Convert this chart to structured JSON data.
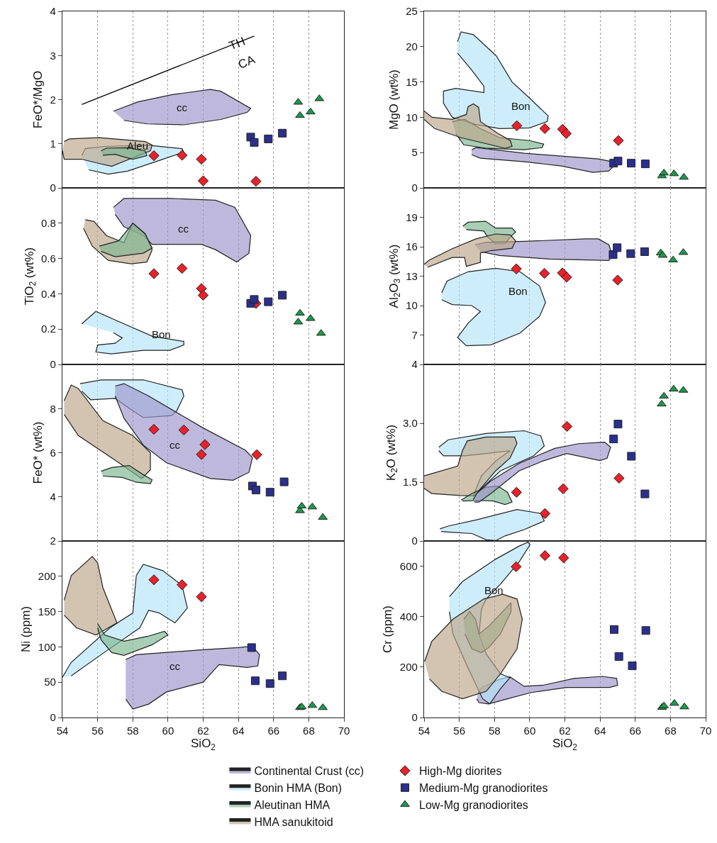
{
  "chart_data": [
    {
      "type": "scatter",
      "ylabel": "FeO*/MgO",
      "xlim": [
        54,
        70
      ],
      "xticks": [
        54,
        56,
        58,
        60,
        62,
        64,
        66,
        68,
        70
      ],
      "ylim": [
        0,
        4
      ],
      "yticks": [
        0,
        1,
        2,
        3,
        4
      ],
      "grid": "x",
      "tick_labels": "y",
      "annotations": [
        "cc",
        "Aleu",
        "TH",
        "CA"
      ],
      "series": [
        {
          "type": "area",
          "color": "#9b93c9",
          "x": [
            56.9,
            58.3,
            60.2,
            62.4,
            63.0,
            64.7,
            64.5,
            63.0,
            60.9,
            58.8,
            57.5
          ],
          "values": [
            1.74,
            1.95,
            2.11,
            2.23,
            2.19,
            1.8,
            1.71,
            1.55,
            1.43,
            1.45,
            1.53
          ]
        },
        {
          "type": "area",
          "color": "#b3e3f7",
          "x": [
            55.1,
            55.3,
            56.4,
            58.8,
            60.8,
            60.9,
            59.5,
            57.7,
            56.6,
            55.5
          ],
          "values": [
            0.73,
            0.89,
            0.94,
            0.97,
            0.89,
            0.81,
            0.62,
            0.38,
            0.31,
            0.41
          ]
        },
        {
          "type": "area",
          "color": "#bca589",
          "x": [
            54.1,
            54.4,
            56.1,
            58.7,
            59.1,
            59.0,
            58.3,
            56.8,
            55.9,
            55.1,
            54.1,
            54.0
          ],
          "values": [
            1.05,
            1.11,
            1.14,
            1.05,
            0.97,
            0.84,
            0.73,
            0.49,
            0.57,
            0.65,
            0.65,
            0.84
          ]
        },
        {
          "type": "area",
          "color": "#79b58f",
          "x": [
            56.2,
            56.5,
            57.7,
            58.7,
            58.8,
            58.0,
            57.5,
            57.0,
            56.3
          ],
          "values": [
            0.84,
            0.9,
            0.91,
            0.84,
            0.73,
            0.65,
            0.7,
            0.76,
            0.74
          ]
        },
        {
          "type": "line",
          "color": "#000000",
          "x": [
            55.1,
            64.9
          ],
          "values": [
            1.89,
            3.44
          ]
        },
        {
          "type": "scatter",
          "marker": "diamond",
          "color": "#e8212a",
          "x": [
            59.2,
            60.8,
            61.9,
            62.0,
            65.0
          ],
          "values": [
            0.73,
            0.74,
            0.65,
            0.16,
            0.15
          ]
        },
        {
          "type": "scatter",
          "marker": "square",
          "color": "#2b2f8f",
          "x": [
            64.7,
            64.9,
            65.7,
            66.5
          ],
          "values": [
            1.15,
            1.03,
            1.11,
            1.24
          ]
        },
        {
          "type": "scatter",
          "marker": "triangle",
          "color": "#1a9a4a",
          "x": [
            67.4,
            67.5,
            68.1,
            68.6
          ],
          "values": [
            1.94,
            1.64,
            1.72,
            2.02
          ]
        }
      ]
    },
    {
      "type": "scatter",
      "ylabel": "MgO (wt%)",
      "xlim": [
        54,
        70
      ],
      "xticks": [
        54,
        56,
        58,
        60,
        62,
        64,
        66,
        68,
        70
      ],
      "ylim": [
        0,
        25
      ],
      "yticks": [
        0,
        5,
        10,
        15,
        20,
        25
      ],
      "grid": "x",
      "tick_labels": "y",
      "annotations": [
        "Bon"
      ],
      "series": [
        {
          "type": "area",
          "color": "#b3e3f7",
          "x": [
            55.9,
            56.1,
            56.8,
            58.1,
            59.0,
            60.0,
            61.05,
            61.0,
            60.0,
            58.3,
            56.9,
            55.6,
            55.1,
            55.1,
            55.8,
            57.4,
            57.4,
            56.7,
            55.9
          ],
          "values": [
            20.7,
            22.1,
            21.7,
            18.7,
            15.0,
            12.7,
            10.2,
            9.4,
            8.5,
            8.4,
            9.0,
            10.0,
            12.0,
            13.7,
            14.1,
            13.5,
            14.4,
            16.7,
            19.1
          ]
        },
        {
          "type": "area",
          "color": "#79b58f",
          "x": [
            55.6,
            56.3,
            57.2,
            58.3,
            60.0,
            60.8,
            60.7,
            59.7,
            57.6,
            56.25,
            55.8
          ],
          "values": [
            9.4,
            9.7,
            8.4,
            7.1,
            6.7,
            6.2,
            5.7,
            5.4,
            5.6,
            6.1,
            7.7
          ]
        },
        {
          "type": "area",
          "color": "#bca589",
          "x": [
            54.0,
            54.45,
            55.6,
            56.4,
            56.5,
            56.8,
            57.1,
            57.2,
            58.2,
            58.9,
            59.0,
            58.6,
            57.8,
            56.1,
            54.6,
            54.0
          ],
          "values": [
            10.9,
            10.0,
            9.7,
            10.4,
            11.5,
            11.9,
            11.4,
            9.4,
            7.7,
            6.7,
            5.9,
            5.6,
            6.1,
            7.1,
            8.4,
            9.7
          ]
        },
        {
          "type": "area",
          "color": "#9b93c9",
          "x": [
            56.7,
            56.95,
            59.7,
            63.9,
            64.7,
            64.9,
            64.5,
            63.6,
            61.8,
            59.7,
            57.2,
            56.7
          ],
          "values": [
            5.4,
            5.7,
            4.9,
            4.1,
            3.7,
            3.4,
            2.4,
            2.2,
            3.1,
            3.7,
            4.2,
            4.7
          ]
        },
        {
          "type": "scatter",
          "marker": "diamond",
          "color": "#e8212a",
          "x": [
            59.27,
            60.86,
            61.87,
            62.08,
            65.04
          ],
          "values": [
            8.8,
            8.4,
            8.3,
            7.7,
            6.7
          ]
        },
        {
          "type": "scatter",
          "marker": "square",
          "color": "#2b2f8f",
          "x": [
            64.77,
            65.02,
            65.77,
            66.57
          ],
          "values": [
            3.5,
            3.8,
            3.5,
            3.4
          ]
        },
        {
          "type": "scatter",
          "marker": "triangle",
          "color": "#1a9a4a",
          "x": [
            67.52,
            67.63,
            68.2,
            68.76
          ],
          "values": [
            1.7,
            2.1,
            2.0,
            1.5
          ]
        }
      ]
    },
    {
      "type": "scatter",
      "ylabel": "TiO$_{2}$ (wt%)",
      "xlim": [
        54,
        70
      ],
      "xticks": [
        54,
        56,
        58,
        60,
        62,
        64,
        66,
        68,
        70
      ],
      "ylim": [
        0,
        1
      ],
      "yticks": [
        0,
        0.2,
        0.4,
        0.6,
        0.8
      ],
      "grid": "x",
      "tick_labels": "y",
      "annotations": [
        "cc",
        "Bon"
      ],
      "series": [
        {
          "type": "area",
          "color": "#9b93c9",
          "x": [
            56.9,
            57.5,
            60.2,
            62.7,
            63.8,
            64.7,
            64.6,
            63.9,
            62.7,
            61.9,
            59.1,
            58.6,
            57.5,
            57.0
          ],
          "values": [
            0.89,
            0.94,
            0.94,
            0.93,
            0.89,
            0.73,
            0.63,
            0.58,
            0.65,
            0.68,
            0.68,
            0.73,
            0.78,
            0.85
          ]
        },
        {
          "type": "area",
          "color": "#bca589",
          "x": [
            55.3,
            55.8,
            56.5,
            57.5,
            58.0,
            58.7,
            59.1,
            58.8,
            57.9,
            56.6,
            55.7,
            55.2
          ],
          "values": [
            0.82,
            0.81,
            0.73,
            0.69,
            0.8,
            0.74,
            0.65,
            0.58,
            0.57,
            0.59,
            0.67,
            0.77
          ]
        },
        {
          "type": "area",
          "color": "#79b58f",
          "x": [
            56.1,
            57.2,
            58.0,
            58.7,
            59.1,
            58.6,
            57.0,
            56.2
          ],
          "values": [
            0.67,
            0.7,
            0.8,
            0.74,
            0.66,
            0.63,
            0.61,
            0.64
          ]
        },
        {
          "type": "area",
          "color": "#b3e3f7",
          "x": [
            55.1,
            55.9,
            57.5,
            59.1,
            60.9,
            60.9,
            60.1,
            58.6,
            56.8,
            55.9,
            56.0,
            57.0,
            57.4,
            56.9
          ],
          "values": [
            0.23,
            0.3,
            0.23,
            0.16,
            0.13,
            0.11,
            0.08,
            0.08,
            0.06,
            0.07,
            0.11,
            0.12,
            0.15,
            0.18
          ]
        },
        {
          "type": "scatter",
          "marker": "diamond",
          "color": "#e8212a",
          "x": [
            59.2,
            60.8,
            61.9,
            62.0,
            65.0
          ],
          "values": [
            0.514,
            0.544,
            0.43,
            0.392,
            0.346
          ]
        },
        {
          "type": "scatter",
          "marker": "square",
          "color": "#2b2f8f",
          "x": [
            64.7,
            64.9,
            65.7,
            66.5
          ],
          "values": [
            0.346,
            0.368,
            0.355,
            0.392
          ]
        },
        {
          "type": "scatter",
          "marker": "triangle",
          "color": "#1a9a4a",
          "x": [
            67.5,
            67.4,
            68.1,
            68.7
          ],
          "values": [
            0.29,
            0.24,
            0.26,
            0.176
          ]
        }
      ]
    },
    {
      "type": "scatter",
      "ylabel": "Al$_{2}$O$_{3}$ (wt%)",
      "xlim": [
        54,
        70
      ],
      "xticks": [
        54,
        56,
        58,
        60,
        62,
        64,
        66,
        68,
        70
      ],
      "ylim": [
        4,
        22
      ],
      "yticks": [
        4,
        7,
        10,
        13,
        16,
        19
      ],
      "grid": "x",
      "tick_labels": "y",
      "annotations": [
        "Bon"
      ],
      "series": [
        {
          "type": "area",
          "color": "#b3e3f7",
          "x": [
            55.0,
            55.3,
            56.5,
            58.06,
            59.45,
            60.56,
            60.9,
            60.56,
            59.45,
            57.8,
            56.4,
            55.9,
            56.5,
            57.2,
            56.7,
            55.6,
            55.0
          ],
          "values": [
            11.3,
            12.5,
            13.45,
            13.8,
            13.45,
            12.0,
            10.3,
            8.9,
            7.2,
            6.0,
            5.9,
            6.75,
            8.2,
            9.4,
            10.0,
            10.1,
            10.6
          ]
        },
        {
          "type": "area",
          "color": "#79b58f",
          "x": [
            56.2,
            56.5,
            57.5,
            58.06,
            59.0,
            59.2,
            58.9,
            58.6,
            58.06,
            57.6,
            57.4,
            56.4
          ],
          "values": [
            18.1,
            18.5,
            18.6,
            17.9,
            17.9,
            17.5,
            17.0,
            16.3,
            16.3,
            17.0,
            17.6,
            17.75
          ]
        },
        {
          "type": "area",
          "color": "#9b93c9",
          "x": [
            56.9,
            57.5,
            59.7,
            63.2,
            63.9,
            64.5,
            64.7,
            64.5,
            61.1,
            58.3,
            57.2
          ],
          "values": [
            16.2,
            16.45,
            16.55,
            16.8,
            16.8,
            16.2,
            15.1,
            14.6,
            14.75,
            15.1,
            15.5
          ]
        },
        {
          "type": "area",
          "color": "#bca589",
          "x": [
            54.0,
            54.3,
            55.6,
            56.95,
            58.06,
            58.9,
            59.2,
            59.0,
            57.8,
            57.2,
            57.2,
            56.4,
            56.3,
            55.6,
            54.2
          ],
          "values": [
            14.2,
            14.65,
            15.8,
            16.8,
            17.3,
            17.2,
            16.6,
            15.85,
            15.6,
            15.35,
            14.4,
            14.0,
            14.9,
            14.9,
            13.9
          ]
        },
        {
          "type": "scatter",
          "marker": "diamond",
          "color": "#e8212a",
          "x": [
            59.24,
            60.84,
            61.86,
            62.1,
            65.0
          ],
          "values": [
            13.74,
            13.28,
            13.33,
            12.9,
            12.6
          ]
        },
        {
          "type": "scatter",
          "marker": "square",
          "color": "#2b2f8f",
          "x": [
            64.74,
            64.97,
            65.74,
            66.53
          ],
          "values": [
            15.2,
            15.9,
            15.3,
            15.5
          ]
        },
        {
          "type": "scatter",
          "marker": "triangle",
          "color": "#1a9a4a",
          "x": [
            67.45,
            67.56,
            68.15,
            68.73
          ],
          "values": [
            15.36,
            15.12,
            14.65,
            15.41
          ]
        }
      ]
    },
    {
      "type": "scatter",
      "ylabel": "FeO* (wt%)",
      "xlim": [
        54,
        70
      ],
      "xticks": [
        54,
        56,
        58,
        60,
        62,
        64,
        66,
        68,
        70
      ],
      "ylim": [
        2,
        10
      ],
      "yticks": [
        2,
        4,
        6,
        8
      ],
      "grid": "x",
      "tick_labels": "y",
      "annotations": [
        "cc"
      ],
      "series": [
        {
          "type": "area",
          "color": "#b3e3f7",
          "x": [
            55.0,
            56.2,
            58.6,
            60.8,
            60.9,
            60.5,
            60.2,
            58.6,
            57.8,
            57.0,
            55.6,
            55.1
          ],
          "values": [
            9.13,
            9.3,
            9.3,
            8.85,
            8.57,
            7.9,
            7.68,
            7.59,
            8.01,
            8.46,
            8.4,
            8.79
          ]
        },
        {
          "type": "area",
          "color": "#9b93c9",
          "x": [
            57.0,
            57.5,
            58.9,
            62.0,
            64.4,
            64.8,
            64.6,
            63.7,
            62.4,
            59.9,
            58.6,
            57.5,
            57.0
          ],
          "values": [
            9.02,
            9.13,
            8.57,
            7.12,
            6.11,
            5.78,
            5.11,
            4.75,
            4.83,
            5.55,
            6.34,
            7.56,
            8.57
          ]
        },
        {
          "type": "area",
          "color": "#bca589",
          "x": [
            54.1,
            54.5,
            54.9,
            56.3,
            58.0,
            59.0,
            59.0,
            58.5,
            57.2,
            54.9,
            54.1
          ],
          "values": [
            8.35,
            9.07,
            8.91,
            7.45,
            6.78,
            6.0,
            5.22,
            4.83,
            5.55,
            6.78,
            7.73
          ]
        },
        {
          "type": "area",
          "color": "#79b58f",
          "x": [
            56.2,
            56.8,
            57.8,
            58.6,
            59.1,
            59.0,
            58.2,
            57.4,
            56.3
          ],
          "values": [
            5.16,
            5.33,
            5.42,
            5.0,
            4.77,
            4.6,
            4.66,
            4.88,
            4.94
          ]
        },
        {
          "type": "scatter",
          "marker": "diamond",
          "color": "#e8212a",
          "x": [
            59.2,
            60.9,
            62.1,
            61.9,
            65.05
          ],
          "values": [
            7.06,
            7.03,
            6.37,
            5.92,
            5.91
          ]
        },
        {
          "type": "scatter",
          "marker": "square",
          "color": "#2b2f8f",
          "x": [
            64.8,
            65.0,
            65.8,
            66.6
          ],
          "values": [
            4.49,
            4.31,
            4.21,
            4.68
          ]
        },
        {
          "type": "scatter",
          "marker": "triangle",
          "color": "#1a9a4a",
          "x": [
            67.5,
            67.6,
            68.2,
            68.8
          ],
          "values": [
            3.37,
            3.58,
            3.54,
            3.07
          ]
        }
      ]
    },
    {
      "type": "scatter",
      "ylabel": "K$_{2}$O (wt%)",
      "xlim": [
        54,
        70
      ],
      "xticks": [
        54,
        56,
        58,
        60,
        62,
        64,
        66,
        68,
        70
      ],
      "ylim": [
        0,
        4.5
      ],
      "yticks": [
        0,
        1.5,
        {
          "value": 3,
          "label": "3.0"
        }
      ],
      "grid": "x",
      "tick_labels": "y",
      "series": [
        {
          "type": "area",
          "color": "#b3e3f7",
          "x": [
            54.84,
            55.37,
            57.53,
            59.68,
            60.63,
            60.83,
            60.22,
            58.34,
            57.12,
            56.79,
            57.26,
            58.07,
            58.88,
            57.53,
            56.32,
            55.1,
            54.84,
            null,
            54.9,
            55.37,
            56.99,
            59.28,
            60.63,
            60.83,
            59.68,
            58.6,
            58.07,
            57.53,
            56.72,
            55.64,
            54.97
          ],
          "values": [
            2.39,
            2.58,
            2.74,
            2.81,
            2.68,
            2.42,
            2.17,
            1.79,
            1.28,
            1.15,
            1.66,
            2.04,
            2.3,
            2.23,
            2.17,
            2.17,
            2.3,
            null,
            0.31,
            0.38,
            0.54,
            0.8,
            0.7,
            0.51,
            0.29,
            0.13,
            0.01,
            0.03,
            0.19,
            0.22,
            0.24
          ]
        },
        {
          "type": "area",
          "color": "#bca589",
          "x": [
            54.0,
            54.7,
            55.91,
            56.18,
            56.45,
            57.53,
            59.14,
            59.28,
            58.88,
            58.07,
            56.86,
            56.05,
            54.43,
            54.0
          ],
          "values": [
            1.66,
            1.75,
            1.91,
            2.3,
            2.55,
            2.65,
            2.65,
            2.49,
            2.11,
            1.79,
            1.15,
            1.16,
            1.21,
            1.34
          ]
        },
        {
          "type": "area",
          "color": "#79b58f",
          "x": [
            56.1,
            56.72,
            57.53,
            58.2,
            58.74,
            59.0,
            58.6,
            57.93,
            57.26,
            56.18
          ],
          "values": [
            1.04,
            1.21,
            1.37,
            1.4,
            1.24,
            0.99,
            0.93,
            1.02,
            1.03,
            1.02
          ]
        },
        {
          "type": "area",
          "color": "#9b93c9",
          "x": [
            56.79,
            56.99,
            57.8,
            59.41,
            61.43,
            62.78,
            64.26,
            64.6,
            64.4,
            64.0,
            62.1,
            60.76,
            59.41,
            57.8,
            57.12,
            56.86
          ],
          "values": [
            1.05,
            1.21,
            1.53,
            1.98,
            2.36,
            2.48,
            2.52,
            2.39,
            2.11,
            2.05,
            2.23,
            2.04,
            1.79,
            1.21,
            0.99,
            0.99
          ]
        },
        {
          "type": "scatter",
          "marker": "diamond",
          "color": "#e8212a",
          "x": [
            59.25,
            60.87,
            61.9,
            62.12,
            65.08
          ],
          "values": [
            1.24,
            0.7,
            1.33,
            2.92,
            1.6
          ]
        },
        {
          "type": "scatter",
          "marker": "square",
          "color": "#2b2f8f",
          "x": [
            64.77,
            65.02,
            65.78,
            66.55
          ],
          "values": [
            2.6,
            2.98,
            2.16,
            1.2
          ]
        },
        {
          "type": "scatter",
          "marker": "triangle",
          "color": "#1a9a4a",
          "x": [
            67.5,
            67.63,
            68.18,
            68.73
          ],
          "values": [
            3.49,
            3.69,
            3.87,
            3.84
          ]
        }
      ]
    },
    {
      "type": "scatter",
      "xlabel": "SiO$_{2}$",
      "ylabel": "Ni (ppm)",
      "xlim": [
        54,
        70
      ],
      "xticks": [
        54,
        56,
        58,
        60,
        62,
        64,
        66,
        68,
        70
      ],
      "ylim": [
        0,
        250
      ],
      "yticks": [
        0,
        50,
        100,
        150,
        200
      ],
      "grid": "x",
      "annotations": [
        "cc"
      ],
      "series": [
        {
          "type": "area",
          "color": "#bca589",
          "x": [
            54.1,
            54.5,
            55.7,
            56.0,
            56.3,
            57.1,
            55.9,
            54.8,
            54.1
          ],
          "values": [
            166,
            201,
            228,
            219,
            184,
            134,
            117,
            127,
            145
          ]
        },
        {
          "type": "area",
          "color": "#b3e3f7",
          "x": [
            54.0,
            54.5,
            56.7,
            58.0,
            58.2,
            58.6,
            59.7,
            60.8,
            61.1,
            60.4,
            59.5,
            58.9,
            58.4,
            56.6,
            54.5
          ],
          "values": [
            57,
            78,
            127,
            148,
            201,
            217,
            208,
            187,
            155,
            134,
            148,
            152,
            127,
            96,
            59
          ]
        },
        {
          "type": "area",
          "color": "#79b58f",
          "x": [
            56.0,
            56.4,
            57.5,
            58.85,
            59.8,
            60.0,
            59.1,
            57.5,
            56.8,
            56.2,
            56.0
          ],
          "values": [
            133,
            117,
            108,
            115,
            122,
            117,
            103,
            88,
            92,
            110,
            127
          ]
        },
        {
          "type": "area",
          "color": "#9b93c9",
          "x": [
            57.6,
            58.2,
            62.0,
            64.0,
            64.8,
            65.2,
            65.1,
            64.5,
            62.9,
            62.0,
            59.9,
            58.9,
            58.0,
            57.6
          ],
          "values": [
            82,
            89,
            96,
            99,
            101,
            89,
            73,
            71,
            75,
            50,
            36,
            19,
            12,
            26
          ]
        },
        {
          "type": "scatter",
          "marker": "diamond",
          "color": "#e8212a",
          "x": [
            59.2,
            60.8,
            61.9
          ],
          "values": [
            195,
            188,
            171
          ]
        },
        {
          "type": "scatter",
          "marker": "square",
          "color": "#2b2f8f",
          "x": [
            64.75,
            64.96,
            65.8,
            66.5
          ],
          "values": [
            99,
            52,
            48,
            59
          ]
        },
        {
          "type": "scatter",
          "marker": "triangle",
          "color": "#1a9a4a",
          "x": [
            67.5,
            67.6,
            68.2,
            68.8
          ],
          "values": [
            14,
            15,
            17,
            14
          ]
        }
      ]
    },
    {
      "type": "scatter",
      "xlabel": "SiO$_{2}$",
      "ylabel": "Cr (ppm)",
      "xlim": [
        54,
        70
      ],
      "xticks": [
        54,
        56,
        58,
        60,
        62,
        64,
        66,
        68,
        70
      ],
      "ylim": [
        0,
        700
      ],
      "yticks": [
        0,
        200,
        400,
        600
      ],
      "grid": "x",
      "legend": "bottom",
      "annotations": [
        "Bon"
      ],
      "series": [
        {
          "type": "area",
          "name": "Continental Crust (cc)",
          "color": "#9b93c9",
          "x": [
            57.06,
            57.26,
            58.34,
            58.88,
            59.28,
            59.68,
            60.76,
            62.51,
            64.13,
            64.94,
            65.0,
            64.53,
            62.1,
            60.09,
            58.74,
            57.66,
            57.12,
            56.99
          ],
          "values": [
            94,
            119,
            153,
            161,
            143,
            124,
            128,
            155,
            163,
            155,
            128,
            119,
            119,
            99,
            74,
            54,
            59,
            74
          ]
        },
        {
          "type": "area",
          "name": "Bonin HMA (Bon)",
          "color": "#b3e3f7",
          "x": [
            55.44,
            56.18,
            58.07,
            59.41,
            59.9,
            60.02,
            59.41,
            58.34,
            57.53,
            57.26,
            57.12,
            57.53,
            58.34,
            58.88,
            58.34,
            57.73,
            57.33,
            56.45,
            55.64,
            55.44
          ],
          "values": [
            479,
            539,
            628,
            680,
            695,
            685,
            618,
            529,
            470,
            430,
            331,
            252,
            173,
            158,
            114,
            54,
            74,
            203,
            331,
            420
          ]
        },
        {
          "type": "area",
          "name": "Aleutinan HMA",
          "color": "#79b58f",
          "x": [
            56.25,
            56.59,
            56.92,
            57.12,
            57.66,
            58.94,
            58.94,
            58.34,
            57.66,
            57.26,
            56.72,
            56.32
          ],
          "values": [
            390,
            420,
            390,
            331,
            361,
            455,
            420,
            331,
            277,
            257,
            272,
            331
          ]
        },
        {
          "type": "area",
          "name": "HMA sanukitoid",
          "color": "#bca589",
          "x": [
            54.03,
            54.43,
            55.64,
            57.39,
            58.47,
            59.28,
            59.58,
            59.28,
            58.34,
            57.53,
            56.18,
            55.0,
            54.3
          ],
          "values": [
            222,
            301,
            390,
            470,
            489,
            470,
            390,
            272,
            173,
            104,
            74,
            104,
            153
          ]
        },
        {
          "type": "scatter",
          "name": "High-Mg diorites",
          "marker": "diamond",
          "color": "#e8212a",
          "x": [
            59.23,
            60.87,
            61.93
          ],
          "values": [
            598,
            642,
            633
          ]
        },
        {
          "type": "scatter",
          "name": "Medium-Mg granodiorites",
          "marker": "square",
          "color": "#2b2f8f",
          "x": [
            64.8,
            65.07,
            65.83,
            66.6
          ],
          "values": [
            349,
            242,
            205,
            345
          ]
        },
        {
          "type": "scatter",
          "name": "Low-Mg granodiorites",
          "marker": "triangle",
          "color": "#1a9a4a",
          "x": [
            67.52,
            67.63,
            68.22,
            68.79
          ],
          "values": [
            40,
            46,
            56,
            42
          ]
        }
      ]
    }
  ]
}
